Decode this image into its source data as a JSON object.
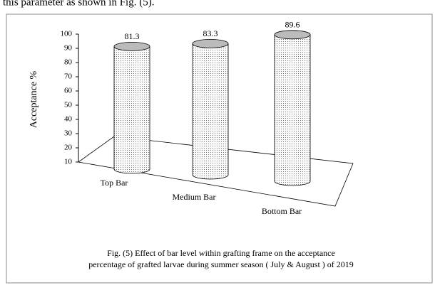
{
  "intro_text": "this parameter as shown in Fig. (5).",
  "chart_data": {
    "type": "bar3d",
    "y_label": "Acceptance %",
    "categories": [
      "Top Bar",
      "Medium Bar",
      "Bottom Bar"
    ],
    "values": [
      81.3,
      83.3,
      89.6
    ],
    "color": "#f2f2f2",
    "ylim": [
      10,
      100
    ],
    "yticks": [
      10,
      20,
      30,
      40,
      50,
      60,
      70,
      80,
      90,
      100
    ],
    "caption": [
      "Fig. (5) Effect of bar level within grafting frame on the   acceptance",
      "percentage of grafted larvae during summer season ( July & August ) of 2019"
    ]
  }
}
